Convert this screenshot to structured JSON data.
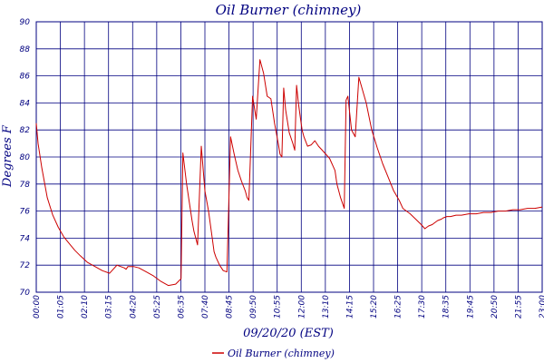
{
  "chart_data": {
    "type": "line",
    "title": "Oil Burner (chimney)",
    "xlabel": "09/20/20 (EST)",
    "ylabel": "Degrees F",
    "ylim": [
      70,
      90
    ],
    "yticks": [
      "70",
      "72",
      "74",
      "76",
      "78",
      "80",
      "82",
      "84",
      "86",
      "88",
      "90"
    ],
    "xlim_minutes": [
      0,
      1380
    ],
    "xticks": [
      "00:00",
      "01:05",
      "02:10",
      "03:15",
      "04:20",
      "05:25",
      "06:35",
      "07:40",
      "08:45",
      "09:50",
      "10:55",
      "12:00",
      "13:10",
      "14:15",
      "15:20",
      "16:25",
      "17:30",
      "18:35",
      "19:45",
      "20:50",
      "21:55",
      "23:00"
    ],
    "grid": true,
    "legend": "bottom-center",
    "colors": {
      "series": "#cc0000",
      "grid": "#000080",
      "text": "#000080"
    },
    "series": [
      {
        "name": "Oil Burner (chimney)",
        "x_minutes": [
          0,
          5,
          15,
          30,
          45,
          60,
          75,
          90,
          105,
          120,
          140,
          160,
          180,
          200,
          220,
          240,
          245,
          250,
          265,
          280,
          300,
          320,
          340,
          360,
          380,
          395,
          400,
          410,
          425,
          430,
          440,
          450,
          460,
          470,
          480,
          485,
          490,
          500,
          510,
          520,
          530,
          540,
          550,
          560,
          570,
          575,
          580,
          590,
          600,
          610,
          620,
          630,
          640,
          650,
          660,
          665,
          670,
          675,
          680,
          690,
          700,
          705,
          710,
          715,
          720,
          725,
          730,
          740,
          750,
          760,
          770,
          780,
          790,
          800,
          805,
          810,
          815,
          820,
          830,
          840,
          845,
          850,
          860,
          870,
          880,
          900,
          915,
          930,
          945,
          960,
          975,
          990,
          1000,
          1020,
          1035,
          1050,
          1060,
          1065,
          1070,
          1080,
          1085,
          1090,
          1095,
          1105,
          1110,
          1120,
          1130,
          1145,
          1160,
          1180,
          1200,
          1220,
          1240,
          1260,
          1280,
          1300,
          1320,
          1340,
          1360,
          1380
        ],
        "values": [
          82.5,
          81.0,
          79.2,
          77.0,
          75.7,
          74.8,
          74.1,
          73.6,
          73.1,
          72.7,
          72.2,
          71.9,
          71.6,
          71.4,
          72.0,
          71.8,
          71.7,
          71.9,
          71.9,
          71.8,
          71.5,
          71.2,
          70.8,
          70.5,
          70.6,
          71.0,
          80.3,
          78.0,
          75.3,
          74.5,
          73.5,
          80.8,
          77.5,
          76.0,
          74.0,
          73.0,
          72.6,
          72.0,
          71.6,
          71.5,
          81.5,
          80.2,
          79.0,
          78.2,
          77.5,
          77.0,
          76.8,
          84.5,
          82.8,
          87.2,
          86.2,
          84.5,
          84.3,
          82.5,
          81.0,
          80.2,
          80.0,
          85.1,
          83.5,
          81.8,
          81.0,
          80.5,
          85.3,
          84.0,
          83.0,
          82.0,
          81.5,
          80.8,
          80.9,
          81.2,
          80.8,
          80.5,
          80.2,
          79.9,
          79.6,
          79.3,
          79.0,
          78.0,
          77.0,
          76.2,
          84.2,
          84.5,
          82.0,
          81.5,
          85.9,
          84.0,
          82.0,
          80.7,
          79.5,
          78.5,
          77.5,
          76.8,
          76.2,
          75.8,
          75.4,
          75.0,
          74.7,
          74.8,
          74.9,
          75.0,
          75.1,
          75.2,
          75.3,
          75.4,
          75.5,
          75.6,
          75.6,
          75.7,
          75.7,
          75.8,
          75.8,
          75.9,
          75.9,
          76.0,
          76.0,
          76.1,
          76.1,
          76.2,
          76.2,
          76.3
        ]
      }
    ]
  }
}
